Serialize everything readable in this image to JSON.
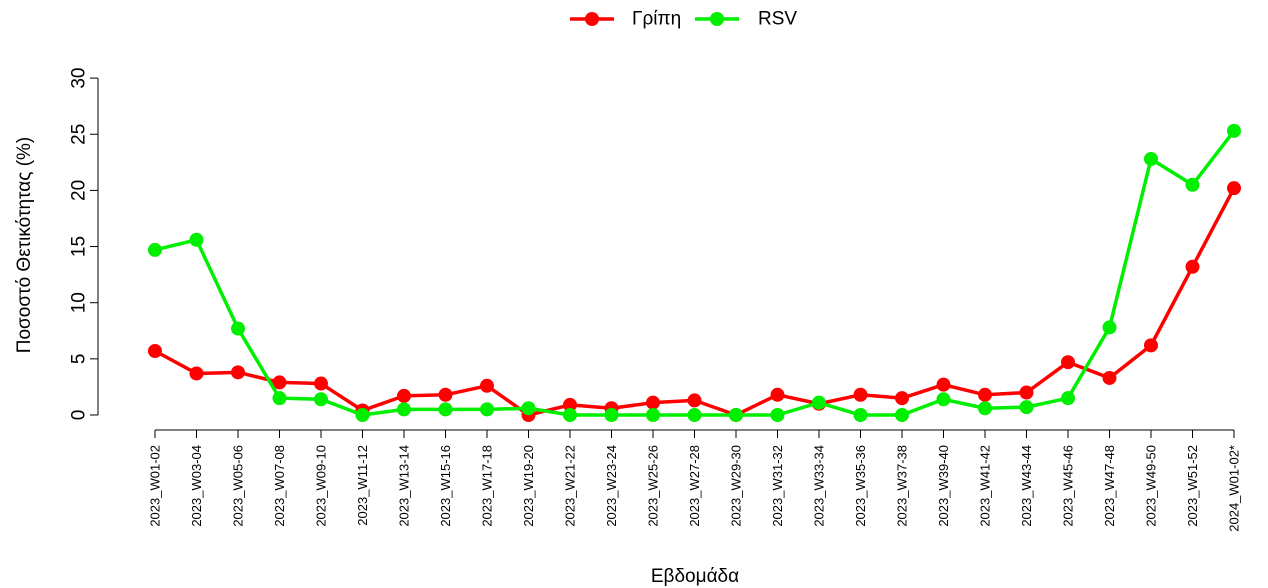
{
  "chart_data": {
    "type": "line",
    "xlabel": "Εβδομάδα",
    "ylabel": "Ποσοστό Θετικότητας (%)",
    "ylim": [
      0,
      30
    ],
    "yticks": [
      "0",
      "5",
      "10",
      "15",
      "20",
      "25",
      "30"
    ],
    "legend_position": "top-center",
    "categories": [
      "2023_W01-02",
      "2023_W03-04",
      "2023_W05-06",
      "2023_W07-08",
      "2023_W09-10",
      "2023_W11-12",
      "2023_W13-14",
      "2023_W15-16",
      "2023_W17-18",
      "2023_W19-20",
      "2023_W21-22",
      "2023_W23-24",
      "2023_W25-26",
      "2023_W27-28",
      "2023_W29-30",
      "2023_W31-32",
      "2023_W33-34",
      "2023_W35-36",
      "2023_W37-38",
      "2023_W39-40",
      "2023_W41-42",
      "2023_W43-44",
      "2023_W45-46",
      "2023_W47-48",
      "2023_W49-50",
      "2023_W51-52",
      "2024_W01-02*"
    ],
    "series": [
      {
        "name": "Γρίπη",
        "color": "#ff0000",
        "values": [
          5.7,
          3.7,
          3.8,
          2.9,
          2.8,
          0.4,
          1.7,
          1.8,
          2.6,
          0.0,
          0.9,
          0.6,
          1.1,
          1.3,
          0.0,
          1.8,
          1.0,
          1.8,
          1.5,
          2.7,
          1.8,
          2.0,
          4.7,
          3.3,
          6.2,
          13.2,
          20.2
        ]
      },
      {
        "name": "RSV",
        "color": "#00ee00",
        "values": [
          14.7,
          15.6,
          7.7,
          1.5,
          1.4,
          0.0,
          0.5,
          0.5,
          0.5,
          0.6,
          0.0,
          0.0,
          0.0,
          0.0,
          0.0,
          0.0,
          1.1,
          0.0,
          0.0,
          1.4,
          0.6,
          0.7,
          1.5,
          7.8,
          22.8,
          20.5,
          25.3
        ]
      }
    ]
  }
}
